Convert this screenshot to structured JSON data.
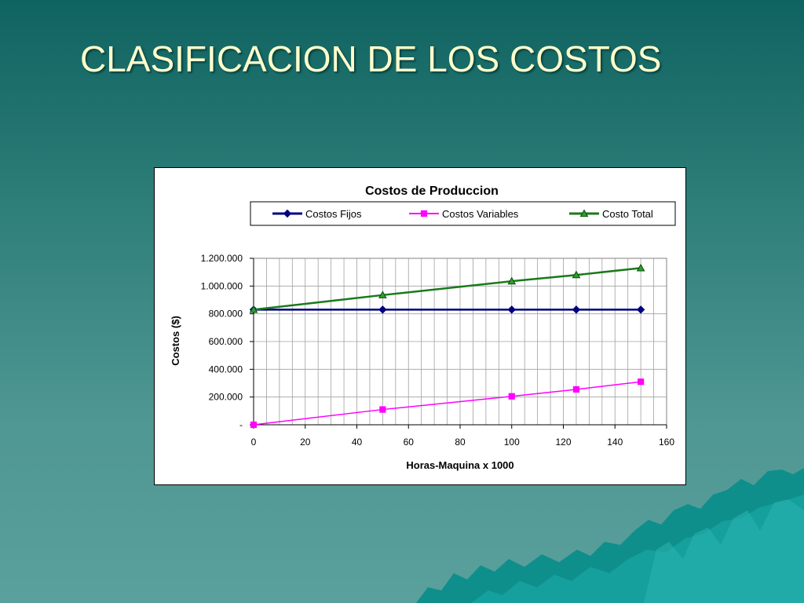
{
  "slide": {
    "title": "CLASIFICACION DE LOS COSTOS"
  },
  "colors": {
    "title_text": "#ffffcc",
    "costos_fijos": "#000080",
    "costos_variables": "#ff00ff",
    "costo_total": "#1a7a1a"
  },
  "chart_data": {
    "type": "line",
    "title": "Costos de Produccion",
    "xlabel": "Horas-Maquina x 1000",
    "ylabel": "Costos ($)",
    "xlim": [
      0,
      160
    ],
    "ylim": [
      0,
      1200000
    ],
    "x_ticks": [
      "0",
      "20",
      "40",
      "60",
      "80",
      "100",
      "120",
      "140",
      "160"
    ],
    "y_ticks": [
      "-",
      "200.000",
      "400.000",
      "600.000",
      "800.000",
      "1.000.000",
      "1.200.000"
    ],
    "grid": true,
    "legend_position": "top",
    "x": [
      0,
      50,
      100,
      125,
      150
    ],
    "series": [
      {
        "name": "Costos Fijos",
        "marker": "diamond",
        "values": [
          830000,
          830000,
          830000,
          830000,
          830000
        ]
      },
      {
        "name": "Costos Variables",
        "marker": "square",
        "values": [
          0,
          110000,
          205000,
          255000,
          310000
        ]
      },
      {
        "name": "Costo Total",
        "marker": "triangle",
        "values": [
          830000,
          935000,
          1035000,
          1080000,
          1130000
        ]
      }
    ]
  }
}
